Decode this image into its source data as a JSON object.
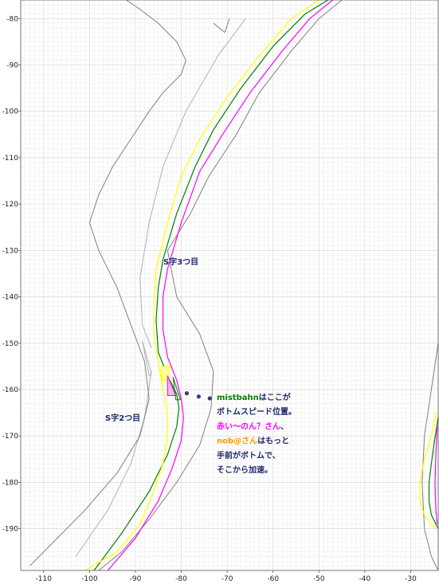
{
  "chart_data": {
    "type": "line",
    "title": "",
    "xlabel": "",
    "ylabel": "",
    "xlim": [
      -115,
      -24
    ],
    "ylim": [
      -199,
      -76
    ],
    "x_ticks": [
      -110,
      -100,
      -90,
      -80,
      -70,
      -60,
      -50,
      -40,
      -30
    ],
    "y_ticks": [
      -80,
      -90,
      -100,
      -110,
      -120,
      -130,
      -140,
      -150,
      -160,
      -170,
      -180,
      -190
    ],
    "grid": true,
    "colors": {
      "green": "#008000",
      "yellow": "#ffff00",
      "magenta": "#ff00ff",
      "track_edge": "#808080",
      "light_line": "#b0b0b0",
      "annotation_text": "#1f2a6b",
      "orange": "#ff9900"
    },
    "series": [
      {
        "color": "#008000",
        "x": [
          -48,
          -53,
          -60,
          -67,
          -73,
          -77,
          -81,
          -84,
          -85,
          -85.5,
          -85,
          -83,
          -81,
          -80.5,
          -81,
          -83,
          -87,
          -93,
          -99
        ],
        "y": [
          -76,
          -79,
          -86,
          -95,
          -104,
          -112,
          -122,
          -132,
          -138,
          -145,
          -152,
          -157,
          -161,
          -164,
          -168,
          -174,
          -182,
          -191,
          -199
        ]
      },
      {
        "color": "#ffff00",
        "x": [
          -50,
          -56,
          -63,
          -70,
          -76,
          -80,
          -83,
          -85.5,
          -86,
          -86,
          -85,
          -84,
          -83,
          -83,
          -84,
          -86,
          -89,
          -94,
          -101
        ],
        "y": [
          -76,
          -80,
          -88,
          -97,
          -106,
          -114,
          -124,
          -134,
          -142,
          -148,
          -154,
          -160,
          -165,
          -170,
          -176,
          -182,
          -189,
          -195,
          -199
        ]
      },
      {
        "color": "#ff00ff",
        "x": [
          -47,
          -52,
          -58,
          -65,
          -71,
          -76,
          -80,
          -83,
          -84,
          -84,
          -83,
          -81,
          -80,
          -79.5,
          -80,
          -82,
          -85,
          -90,
          -96
        ],
        "y": [
          -76,
          -80,
          -87,
          -96,
          -105,
          -113,
          -124,
          -134,
          -140,
          -147,
          -153,
          -158,
          -162,
          -166,
          -171,
          -177,
          -184,
          -192,
          -199
        ]
      },
      {
        "color": "#ffff00",
        "x": [
          -24.5,
          -25.5,
          -27,
          -28,
          -28,
          -27,
          -25.5,
          -24.5
        ],
        "y": [
          -165,
          -170,
          -175,
          -180,
          -184,
          -187,
          -189,
          -190
        ]
      },
      {
        "color": "#008000",
        "x": [
          -24,
          -24.8,
          -25.5,
          -26,
          -26,
          -25.5,
          -24.5,
          -24
        ],
        "y": [
          -166,
          -171,
          -176,
          -180,
          -184,
          -187,
          -189,
          -190
        ]
      },
      {
        "color": "#ff00ff",
        "x": [
          -24.2,
          -24.5,
          -24.7,
          -24.5,
          -24.2
        ],
        "y": [
          -168,
          -174,
          -180,
          -186,
          -189
        ]
      }
    ],
    "track_edges": [
      {
        "x": [
          -92,
          -89,
          -85,
          -81,
          -79,
          -80,
          -84,
          -87,
          -91,
          -95,
          -98,
          -100,
          -98,
          -94,
          -91,
          -88,
          -87,
          -89,
          -94,
          -101,
          -108,
          -113
        ],
        "y": [
          -76,
          -78,
          -81,
          -85,
          -89,
          -92,
          -96,
          -100,
          -106,
          -112,
          -118,
          -124,
          -130,
          -138,
          -146,
          -154,
          -162,
          -170,
          -178,
          -186,
          -193,
          -198
        ]
      },
      {
        "x": [
          -73,
          -70.5,
          -69.5
        ],
        "y": [
          -81,
          -83,
          -80
        ]
      },
      {
        "x": [
          -45,
          -50,
          -56,
          -63,
          -68,
          -74,
          -78,
          -83,
          -81,
          -76,
          -73,
          -73.5,
          -76,
          -81,
          -87,
          -93,
          -98
        ],
        "y": [
          -76,
          -80,
          -87,
          -96,
          -105,
          -114,
          -122,
          -130,
          -140,
          -148,
          -156,
          -164,
          -172,
          -180,
          -188,
          -195,
          -199
        ]
      },
      {
        "x": [
          -24,
          -25.5,
          -27,
          -27.5,
          -27,
          -25.5,
          -24
        ],
        "y": [
          -150,
          -160,
          -170,
          -180,
          -190,
          -196,
          -199
        ]
      }
    ],
    "light_lines": [
      {
        "x": [
          -66,
          -72,
          -79,
          -84,
          -87,
          -89,
          -88.5,
          -86.5
        ],
        "y": [
          -80,
          -88,
          -100,
          -112,
          -124,
          -136,
          -146,
          -151
        ]
      },
      {
        "x": [
          -86.5,
          -88,
          -91,
          -96,
          -103
        ],
        "y": [
          -156,
          -166,
          -176,
          -186,
          -196
        ]
      }
    ],
    "markers": [
      {
        "x": -78.8,
        "y": -160.8
      },
      {
        "x": -76.2,
        "y": -161.5
      },
      {
        "x": -73.8,
        "y": -161.9
      }
    ],
    "annotations": {
      "s3": "S字3つ目",
      "s2": "S字2つ目",
      "note": [
        [
          {
            "t": "mistbahn",
            "c": "#008000"
          },
          {
            "t": "はここが",
            "c": "#1f2a6b"
          }
        ],
        [
          {
            "t": "ボトムスピード位置。",
            "c": "#1f2a6b"
          }
        ],
        [
          {
            "t": "赤い～のん？さん",
            "c": "#ff00ff"
          },
          {
            "t": "、",
            "c": "#1f2a6b"
          }
        ],
        [
          {
            "t": "nob@さん",
            "c": "#ff9900"
          },
          {
            "t": "はもっと",
            "c": "#1f2a6b"
          }
        ],
        [
          {
            "t": "手前がボトムで、",
            "c": "#1f2a6b"
          }
        ],
        [
          {
            "t": "そこから加速。",
            "c": "#1f2a6b"
          }
        ]
      ]
    }
  }
}
